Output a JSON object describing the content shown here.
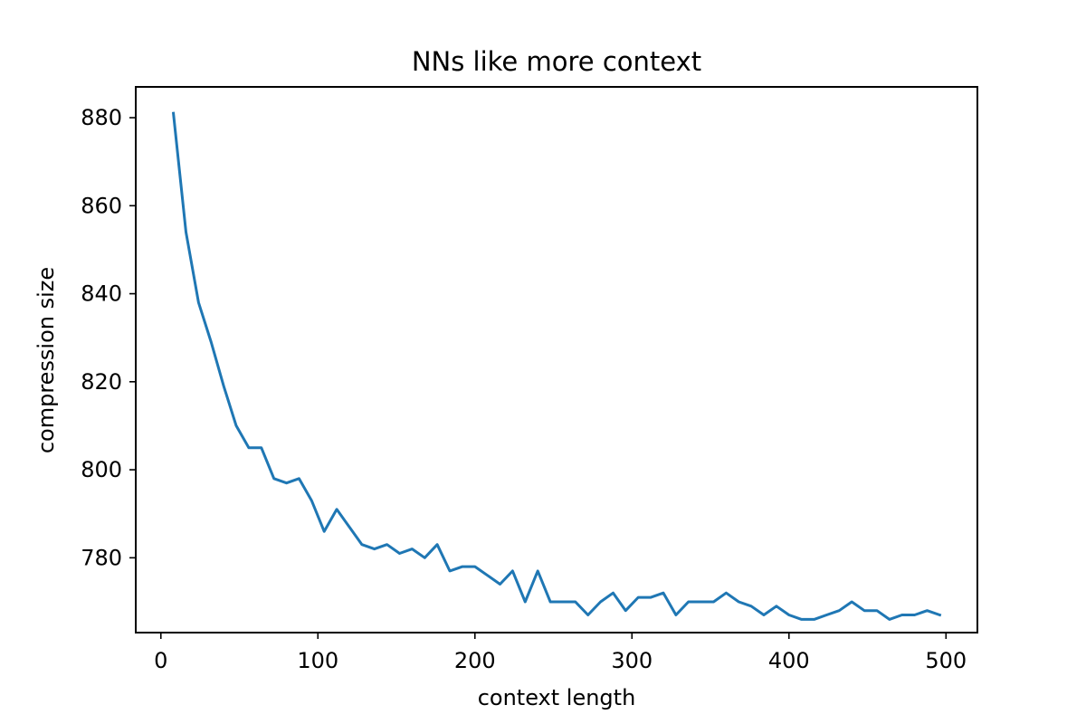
{
  "chart_data": {
    "type": "line",
    "title": "NNs like more context",
    "xlabel": "context length",
    "ylabel": "compression size",
    "xlim": [
      -16,
      520
    ],
    "ylim": [
      763,
      887
    ],
    "xticks": [
      0,
      100,
      200,
      300,
      400,
      500
    ],
    "yticks": [
      780,
      800,
      820,
      840,
      860,
      880
    ],
    "grid": false,
    "series": [
      {
        "color": "#1f77b4",
        "x": [
          8,
          16,
          24,
          32,
          40,
          48,
          56,
          64,
          72,
          80,
          88,
          96,
          104,
          112,
          120,
          128,
          136,
          144,
          152,
          160,
          168,
          176,
          184,
          192,
          200,
          208,
          216,
          224,
          232,
          240,
          248,
          256,
          264,
          272,
          280,
          288,
          296,
          304,
          312,
          320,
          328,
          336,
          344,
          352,
          360,
          368,
          376,
          384,
          392,
          400,
          408,
          416,
          424,
          432,
          440,
          448,
          456,
          464,
          472,
          480,
          488,
          496
        ],
        "y": [
          881,
          854,
          838,
          829,
          819,
          810,
          805,
          805,
          798,
          797,
          798,
          793,
          786,
          791,
          787,
          783,
          782,
          783,
          781,
          782,
          780,
          783,
          777,
          778,
          778,
          776,
          774,
          777,
          770,
          777,
          770,
          770,
          770,
          767,
          770,
          772,
          768,
          771,
          771,
          772,
          767,
          770,
          770,
          770,
          772,
          770,
          769,
          767,
          769,
          767,
          766,
          766,
          767,
          768,
          770,
          768,
          768,
          766,
          767,
          767,
          768,
          767
        ]
      }
    ]
  }
}
